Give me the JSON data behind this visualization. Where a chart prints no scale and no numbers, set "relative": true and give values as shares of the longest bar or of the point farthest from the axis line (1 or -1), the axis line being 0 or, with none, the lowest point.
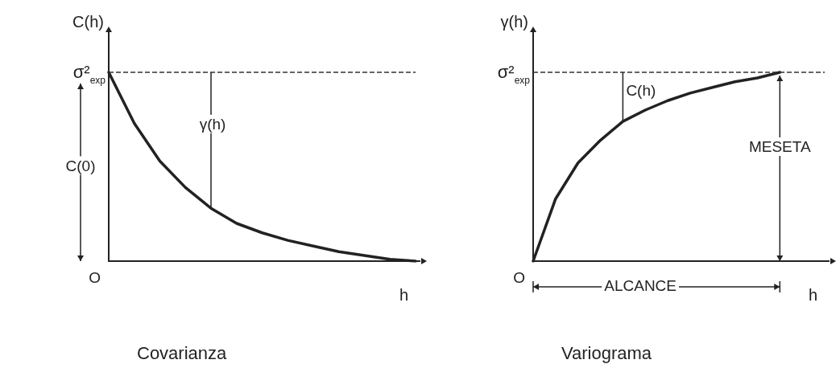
{
  "chart_data": [
    {
      "type": "line",
      "title": "Covarianza",
      "xlabel": "h",
      "ylabel": "C(h)",
      "relative": true,
      "categories": [
        null,
        null,
        null,
        null,
        null,
        null,
        null,
        null,
        null,
        null,
        null,
        null,
        null
      ],
      "series": [
        {
          "color": "#222222",
          "values": [
            1,
            0.73,
            0.53,
            0.39,
            0.28,
            0.2,
            0.15,
            0.11,
            0.08,
            0.05,
            0.03,
            0.01,
            0
          ]
        }
      ],
      "ref_lines": [
        {
          "axis": "y",
          "value": 1,
          "label": "σ²$_{exp}$",
          "line_style": "dashed"
        }
      ],
      "annotations": [
        "C(0)",
        "γ(h)",
        "O"
      ]
    },
    {
      "type": "line",
      "title": "Variograma",
      "xlabel": "h",
      "ylabel": "γ(h)",
      "relative": true,
      "categories": [
        null,
        null,
        null,
        null,
        null,
        null,
        null,
        null,
        null,
        null,
        null,
        null,
        null,
        null
      ],
      "series": [
        {
          "color": "#222222",
          "values": [
            0,
            0.33,
            0.52,
            0.64,
            0.74,
            0.8,
            0.85,
            0.89,
            0.92,
            0.95,
            0.97,
            1,
            null,
            null
          ]
        }
      ],
      "ref_lines": [
        {
          "axis": "y",
          "value": 1,
          "label": "σ²$_{exp}$",
          "line_style": "dashed"
        }
      ],
      "annotations": [
        "C(h)",
        "MESETA",
        "ALCANCE",
        "O"
      ]
    }
  ]
}
